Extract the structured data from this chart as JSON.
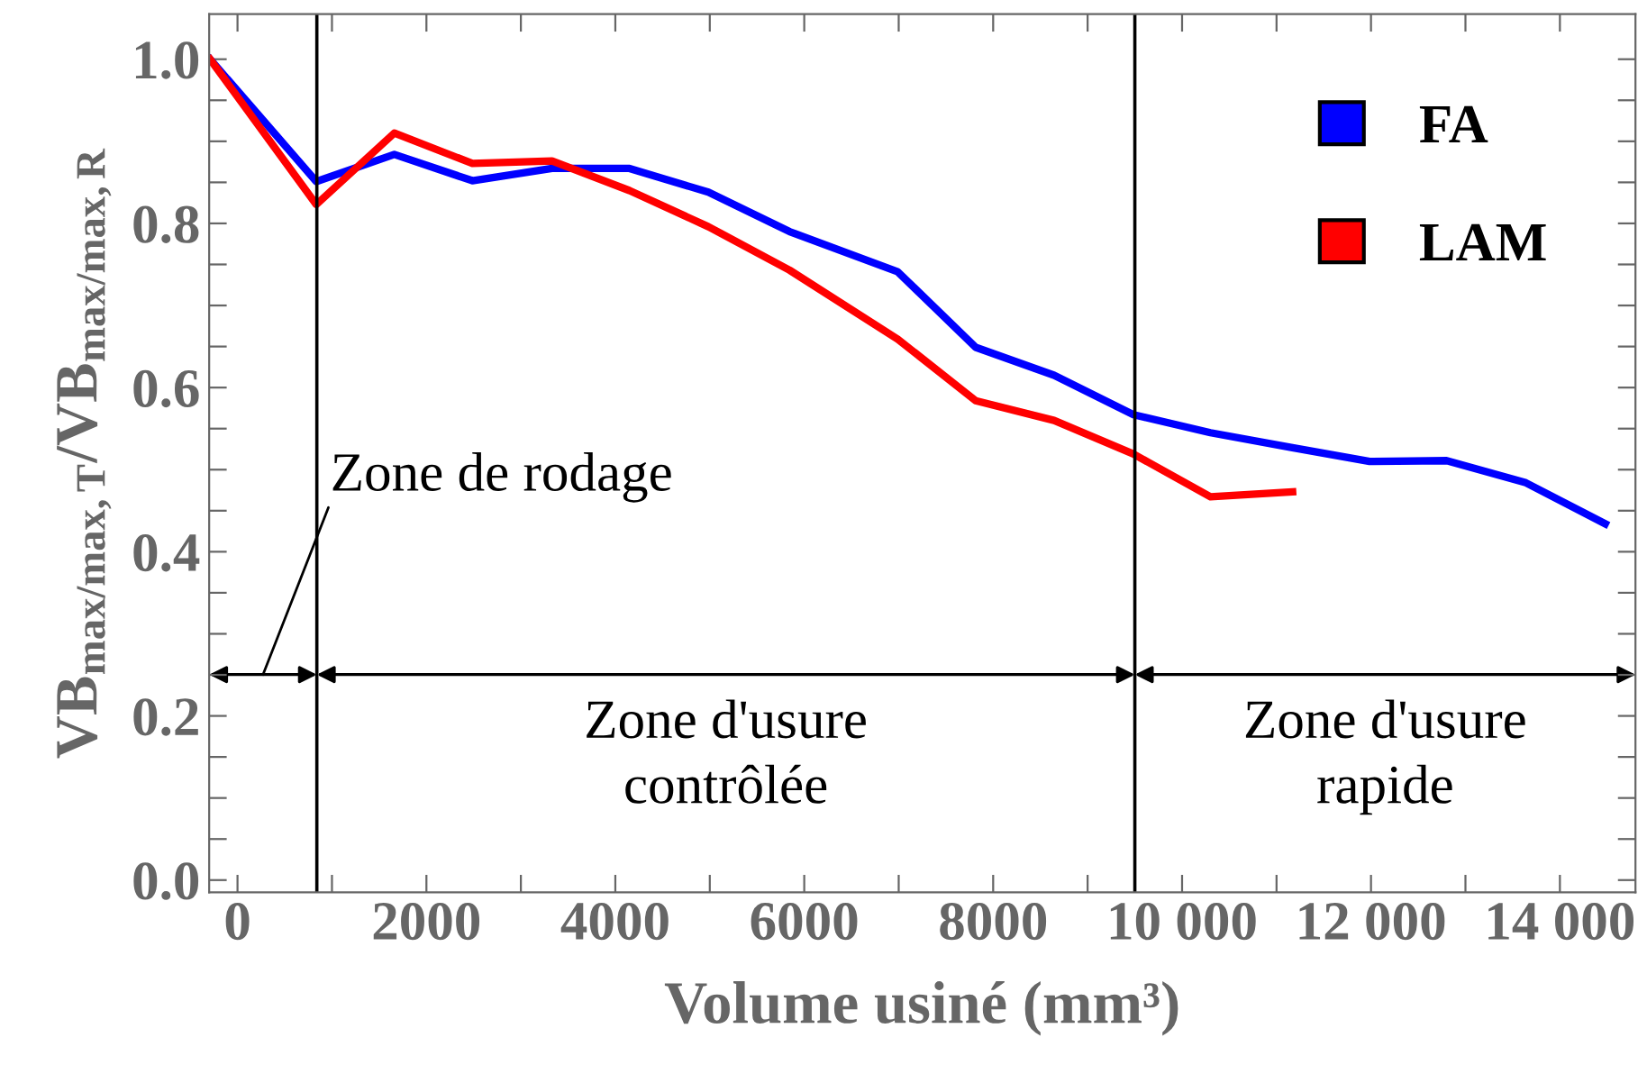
{
  "chart_data": {
    "type": "line",
    "xlabel": "Volume usiné (mm³)",
    "ylabel": "VB$_{max/max,T}$/VB$_{max/max,R}$",
    "series": [
      {
        "name": "FA",
        "color": "#0000ff",
        "x": [
          -290,
          834,
          1660,
          2487,
          3330,
          4150,
          4985,
          5845,
          6990,
          7815,
          8645,
          9485,
          10300,
          11155,
          11985,
          12800,
          13640,
          14480
        ],
        "values": [
          1.0,
          0.851,
          0.884,
          0.852,
          0.867,
          0.867,
          0.838,
          0.79,
          0.741,
          0.649,
          0.615,
          0.567,
          0.545,
          0.527,
          0.51,
          0.511,
          0.484,
          0.434
        ]
      },
      {
        "name": "LAM",
        "color": "#ff0000",
        "x": [
          -290,
          834,
          1660,
          2487,
          3330,
          4150,
          4985,
          5845,
          6990,
          7815,
          8645,
          9485,
          10300,
          11170
        ],
        "values": [
          1.0,
          0.823,
          0.91,
          0.873,
          0.876,
          0.84,
          0.796,
          0.743,
          0.659,
          0.584,
          0.56,
          0.519,
          0.467,
          0.473
        ]
      }
    ],
    "ref_lines": [
      {
        "axis": "x",
        "value": 840,
        "color": "#000000"
      },
      {
        "axis": "x",
        "value": 9500,
        "color": "#000000"
      }
    ],
    "annotations": [
      "Zone de rodage",
      "Zone d'usure\ncontrôlée",
      "Zone d'usure\nrapide"
    ],
    "xlim": [
      -300,
      14800
    ],
    "xticks": [
      0,
      {
        "value": 1000,
        "label": null
      },
      2000,
      {
        "value": 3000,
        "label": null
      },
      4000,
      {
        "value": 5000,
        "label": null
      },
      6000,
      {
        "value": 7000,
        "label": null
      },
      8000,
      {
        "value": 9000,
        "label": null
      },
      {
        "value": 10000,
        "label": "10 000"
      },
      {
        "value": 11000,
        "label": null
      },
      {
        "value": 12000,
        "label": "12 000"
      },
      {
        "value": 13000,
        "label": null
      },
      {
        "value": 14000,
        "label": "14 000"
      }
    ],
    "ylim": [
      -0.015,
      1.055
    ],
    "yticks": [
      {
        "value": 0,
        "label": "0.0"
      },
      {
        "value": 0.05,
        "label": null
      },
      {
        "value": 0.1,
        "label": null
      },
      {
        "value": 0.15,
        "label": null
      },
      0.2,
      {
        "value": 0.25,
        "label": null
      },
      {
        "value": 0.3,
        "label": null
      },
      {
        "value": 0.35,
        "label": null
      },
      0.4,
      {
        "value": 0.45,
        "label": null
      },
      {
        "value": 0.5,
        "label": null
      },
      {
        "value": 0.55,
        "label": null
      },
      0.6,
      {
        "value": 0.65,
        "label": null
      },
      {
        "value": 0.7,
        "label": null
      },
      {
        "value": 0.75,
        "label": null
      },
      0.8,
      {
        "value": 0.85,
        "label": null
      },
      {
        "value": 0.9,
        "label": null
      },
      {
        "value": 0.95,
        "label": null
      },
      {
        "value": 1,
        "label": "1.0"
      }
    ],
    "grid": false,
    "legend": "top right",
    "marker": "none",
    "line_style": "solid"
  }
}
